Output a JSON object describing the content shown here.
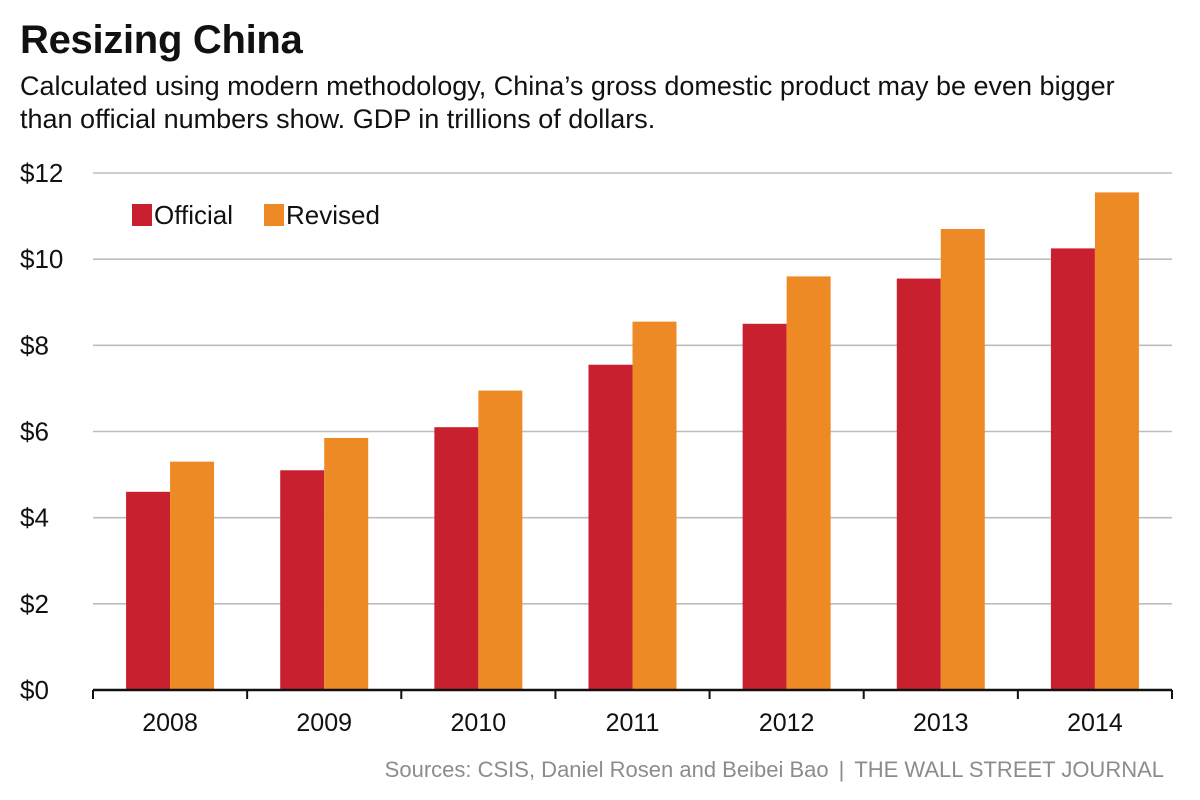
{
  "title": "Resizing China",
  "subtitle": "Calculated using modern methodology, China’s gross domestic product may be even bigger than official numbers show. GDP in trillions of dollars.",
  "footer": {
    "sources": "Sources: CSIS, Daniel Rosen and Beibei Bao",
    "separator": "|",
    "publisher": "THE WALL STREET JOURNAL"
  },
  "chart_data": {
    "type": "bar",
    "title": "Resizing China",
    "xlabel": "",
    "ylabel": "GDP in trillions of dollars",
    "categories": [
      "2008",
      "2009",
      "2010",
      "2011",
      "2012",
      "2013",
      "2014"
    ],
    "series": [
      {
        "name": "Official",
        "color": "#c8202f",
        "values": [
          4.6,
          5.1,
          6.1,
          7.55,
          8.5,
          9.55,
          10.25
        ]
      },
      {
        "name": "Revised",
        "color": "#ee8a25",
        "values": [
          5.3,
          5.85,
          6.95,
          8.55,
          9.6,
          10.7,
          11.55
        ]
      }
    ],
    "ylim": [
      0,
      12
    ],
    "yticks": [
      0,
      2,
      4,
      6,
      8,
      10,
      12
    ],
    "ytick_labels": [
      "$0",
      "$2",
      "$4",
      "$6",
      "$8",
      "$10",
      "$12"
    ],
    "grid": true,
    "legend_position": "top-left"
  }
}
